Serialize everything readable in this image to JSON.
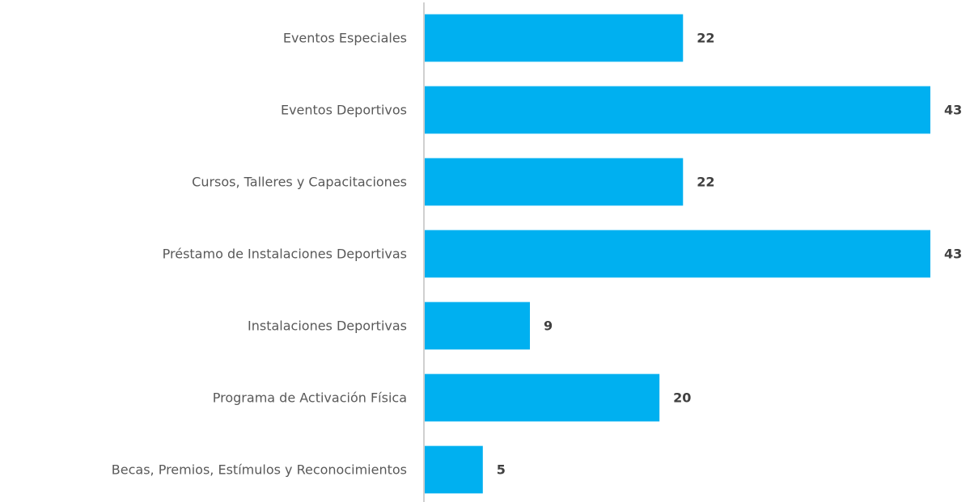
{
  "chart_data": {
    "type": "bar",
    "orientation": "horizontal",
    "categories": [
      "Eventos Especiales",
      "Eventos Deportivos",
      "Cursos, Talleres y Capacitaciones",
      "Préstamo de Instalaciones Deportivas",
      "Instalaciones Deportivas",
      "Programa de Activación Física",
      "Becas, Premios, Estímulos y Reconocimientos"
    ],
    "values": [
      22,
      43,
      22,
      43,
      9,
      20,
      5
    ],
    "color": "#00b0f0",
    "xlim": [
      0,
      43
    ],
    "grid": false
  }
}
